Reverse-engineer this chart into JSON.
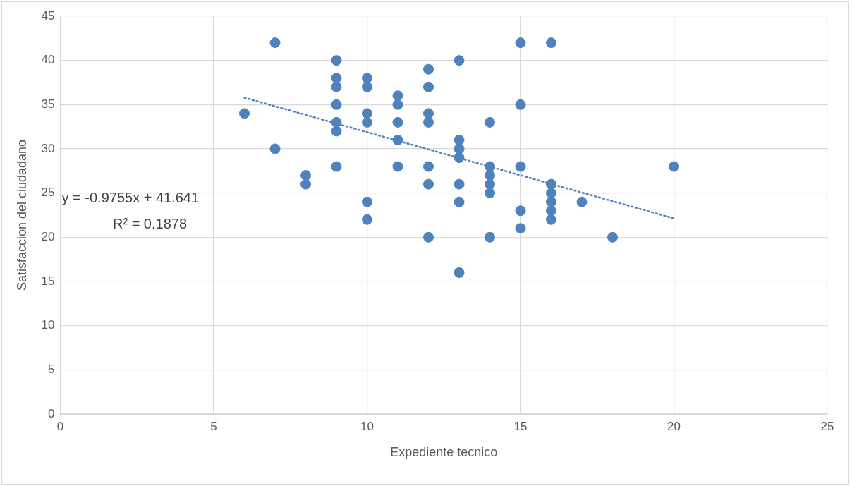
{
  "chart_data": {
    "type": "scatter",
    "xlabel": "Expediente tecnico",
    "ylabel": "Satisfaccion del ciudadano",
    "xlim": [
      0,
      25
    ],
    "xticks": [
      0,
      5,
      10,
      15,
      20,
      25
    ],
    "ylim": [
      0,
      45
    ],
    "yticks": [
      0,
      5,
      10,
      15,
      20,
      25,
      30,
      35,
      40,
      45
    ],
    "grid": true,
    "legend": false,
    "annotations": [
      "y = -0.9755x + 41.641",
      "R² = 0.1878"
    ],
    "series": [
      {
        "marker": "circle",
        "color": "#4f81bd",
        "x": [
          6,
          7,
          7,
          8,
          8,
          9,
          9,
          9,
          9,
          9,
          9,
          9,
          10,
          10,
          10,
          10,
          10,
          10,
          11,
          11,
          11,
          11,
          11,
          12,
          12,
          12,
          12,
          12,
          12,
          12,
          13,
          13,
          13,
          13,
          13,
          13,
          13,
          14,
          14,
          14,
          14,
          14,
          14,
          15,
          15,
          15,
          15,
          15,
          16,
          16,
          16,
          16,
          16,
          16,
          17,
          18,
          20
        ],
        "values": [
          34,
          42,
          30,
          27,
          26,
          40,
          38,
          37,
          35,
          33,
          32,
          28,
          38,
          37,
          34,
          33,
          24,
          22,
          36,
          35,
          33,
          31,
          28,
          39,
          37,
          34,
          33,
          28,
          26,
          20,
          40,
          31,
          30,
          29,
          26,
          24,
          16,
          33,
          28,
          27,
          26,
          25,
          20,
          42,
          35,
          28,
          23,
          21,
          42,
          26,
          25,
          24,
          23,
          22,
          24,
          20,
          28
        ]
      },
      {
        "type": "line",
        "marker": "none",
        "color": "#4f81bd",
        "line_style": "dotted",
        "x": [
          6,
          20
        ],
        "values": [
          35.79,
          22.13
        ]
      }
    ]
  }
}
